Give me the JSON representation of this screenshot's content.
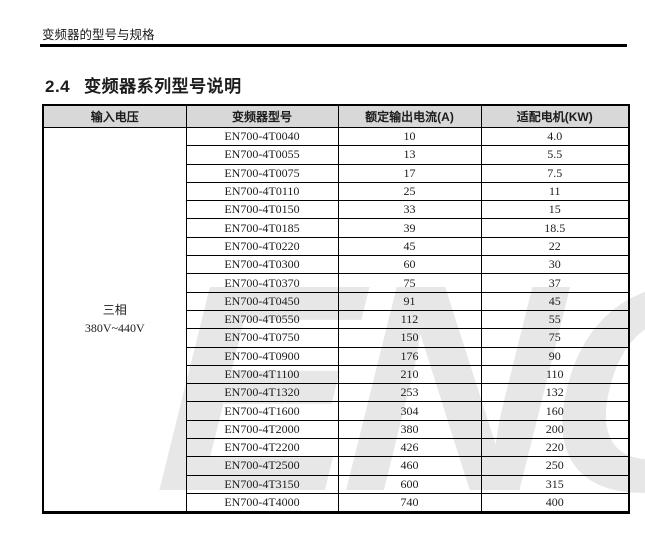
{
  "page": {
    "running_header": "变频器的型号与规格",
    "section_number": "2.4",
    "section_title": "变频器系列型号说明",
    "watermark_text": "ENC"
  },
  "colors": {
    "table_header_bg": "#d8d8d8",
    "table_border": "#000000",
    "watermark": "#e7e7e7",
    "text": "#1c1c1c"
  },
  "table": {
    "columns": [
      "输入电压",
      "变频器型号",
      "额定输出电流(A)",
      "适配电机(KW)"
    ],
    "input_voltage": {
      "line1": "三相",
      "line2": "380V~440V"
    },
    "rows": [
      {
        "model": "EN700-4T0040",
        "current": "10",
        "motor": "4.0"
      },
      {
        "model": "EN700-4T0055",
        "current": "13",
        "motor": "5.5"
      },
      {
        "model": "EN700-4T0075",
        "current": "17",
        "motor": "7.5"
      },
      {
        "model": "EN700-4T0110",
        "current": "25",
        "motor": "11"
      },
      {
        "model": "EN700-4T0150",
        "current": "33",
        "motor": "15"
      },
      {
        "model": "EN700-4T0185",
        "current": "39",
        "motor": "18.5"
      },
      {
        "model": "EN700-4T0220",
        "current": "45",
        "motor": "22"
      },
      {
        "model": "EN700-4T0300",
        "current": "60",
        "motor": "30"
      },
      {
        "model": "EN700-4T0370",
        "current": "75",
        "motor": "37"
      },
      {
        "model": "EN700-4T0450",
        "current": "91",
        "motor": "45"
      },
      {
        "model": "EN700-4T0550",
        "current": "112",
        "motor": "55"
      },
      {
        "model": "EN700-4T0750",
        "current": "150",
        "motor": "75"
      },
      {
        "model": "EN700-4T0900",
        "current": "176",
        "motor": "90"
      },
      {
        "model": "EN700-4T1100",
        "current": "210",
        "motor": "110"
      },
      {
        "model": "EN700-4T1320",
        "current": "253",
        "motor": "132"
      },
      {
        "model": "EN700-4T1600",
        "current": "304",
        "motor": "160"
      },
      {
        "model": "EN700-4T2000",
        "current": "380",
        "motor": "200"
      },
      {
        "model": "EN700-4T2200",
        "current": "426",
        "motor": "220"
      },
      {
        "model": "EN700-4T2500",
        "current": "460",
        "motor": "250"
      },
      {
        "model": "EN700-4T3150",
        "current": "600",
        "motor": "315"
      },
      {
        "model": "EN700-4T4000",
        "current": "740",
        "motor": "400"
      }
    ]
  }
}
